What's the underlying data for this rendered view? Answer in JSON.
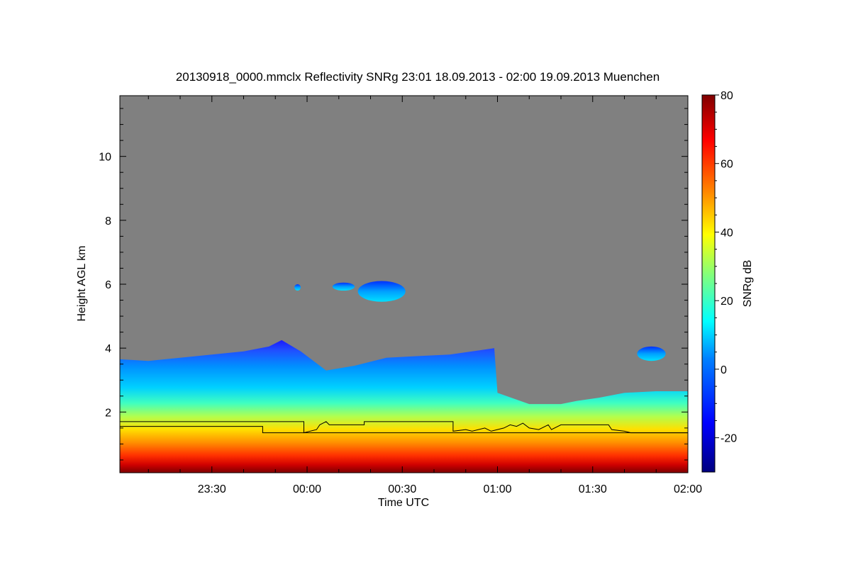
{
  "chart_data": {
    "type": "heatmap",
    "title": "20130918_0000.mmclx Reflectivity SNRg   23:01 18.09.2013 - 02:00 19.09.2013 Muenchen",
    "xlabel": "Time UTC",
    "ylabel": "Height AGL km",
    "xlim": [
      "23:01",
      "02:00"
    ],
    "ylim": [
      0.1,
      11.9
    ],
    "x_ticks": [
      {
        "label": "23:30",
        "minutes_after_2300": 30
      },
      {
        "label": "00:00",
        "minutes_after_2300": 60
      },
      {
        "label": "00:30",
        "minutes_after_2300": 90
      },
      {
        "label": "01:00",
        "minutes_after_2300": 120
      },
      {
        "label": "01:30",
        "minutes_after_2300": 150
      },
      {
        "label": "02:00",
        "minutes_after_2300": 180
      }
    ],
    "y_ticks": [
      {
        "label": "2",
        "value": 2
      },
      {
        "label": "4",
        "value": 4
      },
      {
        "label": "6",
        "value": 6
      },
      {
        "label": "8",
        "value": 8
      },
      {
        "label": "10",
        "value": 10
      }
    ],
    "colorbar": {
      "label": "SNRg dB",
      "range": [
        -30,
        80
      ],
      "ticks": [
        {
          "label": "-20",
          "value": -20
        },
        {
          "label": "0",
          "value": 0
        },
        {
          "label": "20",
          "value": 20
        },
        {
          "label": "40",
          "value": 40
        },
        {
          "label": "60",
          "value": 60
        },
        {
          "label": "80",
          "value": 80
        }
      ]
    },
    "background_color": "#808080",
    "colors": {
      "low": "#00007f",
      "mid_low": "#00bfff",
      "mid": "#7fff7f",
      "mid_high": "#ffff00",
      "high": "#ff4000",
      "max": "#7f0000",
      "line": "#000000"
    },
    "echo_top_km": [
      {
        "t": 1,
        "h": 3.65
      },
      {
        "t": 10,
        "h": 3.6
      },
      {
        "t": 20,
        "h": 3.7
      },
      {
        "t": 30,
        "h": 3.8
      },
      {
        "t": 40,
        "h": 3.9
      },
      {
        "t": 48,
        "h": 4.05
      },
      {
        "t": 52,
        "h": 4.25
      },
      {
        "t": 58,
        "h": 3.9
      },
      {
        "t": 62,
        "h": 3.6
      },
      {
        "t": 66,
        "h": 3.3
      },
      {
        "t": 75,
        "h": 3.45
      },
      {
        "t": 85,
        "h": 3.7
      },
      {
        "t": 95,
        "h": 3.75
      },
      {
        "t": 105,
        "h": 3.8
      },
      {
        "t": 112,
        "h": 3.9
      },
      {
        "t": 119,
        "h": 4.0
      },
      {
        "t": 120,
        "h": 2.6
      },
      {
        "t": 130,
        "h": 2.25
      },
      {
        "t": 140,
        "h": 2.25
      },
      {
        "t": 145,
        "h": 2.35
      },
      {
        "t": 152,
        "h": 2.45
      },
      {
        "t": 160,
        "h": 2.6
      },
      {
        "t": 170,
        "h": 2.65
      },
      {
        "t": 180,
        "h": 2.65
      }
    ],
    "upper_layers": [
      {
        "t_start": 56,
        "t_end": 58,
        "h_top": 6.0,
        "h_bottom": 5.8
      },
      {
        "t_start": 68,
        "t_end": 75,
        "h_top": 6.05,
        "h_bottom": 5.8
      },
      {
        "t_start": 76,
        "t_end": 91,
        "h_top": 6.1,
        "h_bottom": 5.45
      },
      {
        "t_start": 164,
        "t_end": 173,
        "h_top": 4.05,
        "h_bottom": 3.6
      }
    ],
    "line_series": [
      {
        "points": [
          {
            "t": 1,
            "h": 1.7
          },
          {
            "t": 59,
            "h": 1.7
          },
          {
            "t": 59,
            "h": 1.35
          },
          {
            "t": 63,
            "h": 1.45
          },
          {
            "t": 64,
            "h": 1.6
          },
          {
            "t": 65,
            "h": 1.65
          },
          {
            "t": 66,
            "h": 1.7
          },
          {
            "t": 67,
            "h": 1.6
          },
          {
            "t": 78,
            "h": 1.6
          },
          {
            "t": 78,
            "h": 1.7
          },
          {
            "t": 106,
            "h": 1.7
          },
          {
            "t": 106,
            "h": 1.4
          },
          {
            "t": 110,
            "h": 1.45
          },
          {
            "t": 112,
            "h": 1.4
          },
          {
            "t": 116,
            "h": 1.5
          },
          {
            "t": 118,
            "h": 1.4
          },
          {
            "t": 120,
            "h": 1.45
          },
          {
            "t": 122,
            "h": 1.5
          },
          {
            "t": 124,
            "h": 1.6
          },
          {
            "t": 126,
            "h": 1.55
          },
          {
            "t": 128,
            "h": 1.65
          },
          {
            "t": 130,
            "h": 1.5
          },
          {
            "t": 133,
            "h": 1.45
          },
          {
            "t": 136,
            "h": 1.6
          },
          {
            "t": 137,
            "h": 1.45
          },
          {
            "t": 140,
            "h": 1.6
          },
          {
            "t": 155,
            "h": 1.6
          },
          {
            "t": 156,
            "h": 1.45
          },
          {
            "t": 160,
            "h": 1.4
          },
          {
            "t": 162,
            "h": 1.35
          },
          {
            "t": 180,
            "h": 1.35
          }
        ]
      },
      {
        "points": [
          {
            "t": 1,
            "h": 1.55
          },
          {
            "t": 46,
            "h": 1.55
          },
          {
            "t": 46,
            "h": 1.35
          },
          {
            "t": 180,
            "h": 1.35
          }
        ]
      }
    ]
  }
}
